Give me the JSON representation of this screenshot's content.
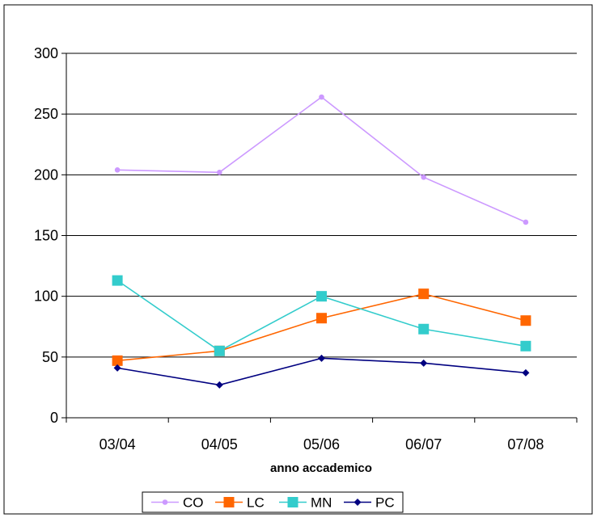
{
  "chart_data": {
    "type": "line",
    "title": "",
    "xlabel": "anno accademico",
    "ylabel": "",
    "categories": [
      "03/04",
      "04/05",
      "05/06",
      "06/07",
      "07/08"
    ],
    "ylim": [
      0,
      300
    ],
    "yticks": [
      0,
      50,
      100,
      150,
      200,
      250,
      300
    ],
    "grid": "horizontal",
    "legend_position": "bottom",
    "series": [
      {
        "name": "CO",
        "values": [
          204,
          202,
          264,
          198,
          161
        ],
        "color": "#CC99FF",
        "marker": "circle"
      },
      {
        "name": "LC",
        "values": [
          47,
          55,
          82,
          102,
          80
        ],
        "color": "#FF6600",
        "marker": "square"
      },
      {
        "name": "MN",
        "values": [
          113,
          55,
          100,
          73,
          59
        ],
        "color": "#33CCCC",
        "marker": "square"
      },
      {
        "name": "PC",
        "values": [
          41,
          27,
          49,
          45,
          37
        ],
        "color": "#000080",
        "marker": "diamond"
      }
    ]
  }
}
